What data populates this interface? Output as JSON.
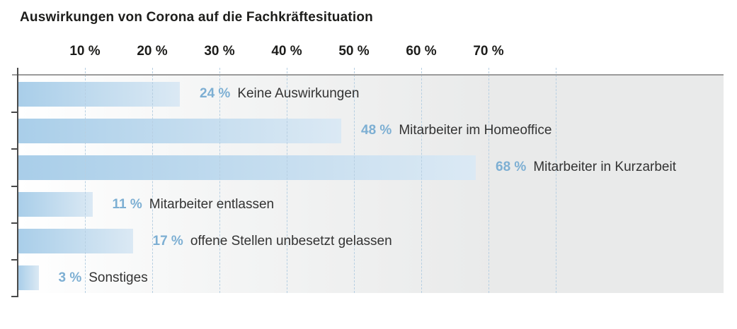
{
  "title": "Auswirkungen von Corona auf die Fachkräftesituation",
  "chart_data": {
    "type": "bar",
    "orientation": "horizontal",
    "title": "Auswirkungen von Corona auf die Fachkräftesituation",
    "categories": [
      "Keine Auswirkungen",
      "Mitarbeiter im Homeoffice",
      "Mitarbeiter in Kurzarbeit",
      "Mitarbeiter entlassen",
      "offene Stellen unbesetzt gelassen",
      "Sonstiges"
    ],
    "values": [
      24,
      48,
      68,
      11,
      17,
      3
    ],
    "value_labels": [
      "24 %",
      "48 %",
      "68 %",
      "11 %",
      "17 %",
      "3 %"
    ],
    "xlabel": "",
    "ylabel": "",
    "xlim": [
      0,
      105
    ],
    "axis_ticks_pct": [
      10,
      20,
      30,
      40,
      50,
      60,
      70
    ],
    "axis_tick_labels": [
      "10 %",
      "20 %",
      "30 %",
      "40 %",
      "50 %",
      "60 %",
      "70 %"
    ],
    "gridlines_pct": [
      10,
      20,
      30,
      40,
      50,
      60,
      70,
      80
    ],
    "grid": "vertical-dashed",
    "legend": "none",
    "colors": {
      "bar_gradient_start": "#a9cee9",
      "bar_gradient_end": "#dbe9f4",
      "value_label": "#7dafd3",
      "category_label": "#333333",
      "gridline": "#b7cfe2",
      "axis_line": "#4a4a4a",
      "plot_border_top": "#9b9b9b",
      "plot_bg_left": "#ffffff",
      "plot_bg_right": "#e9eaea",
      "title_color": "#1d1d1b"
    }
  }
}
